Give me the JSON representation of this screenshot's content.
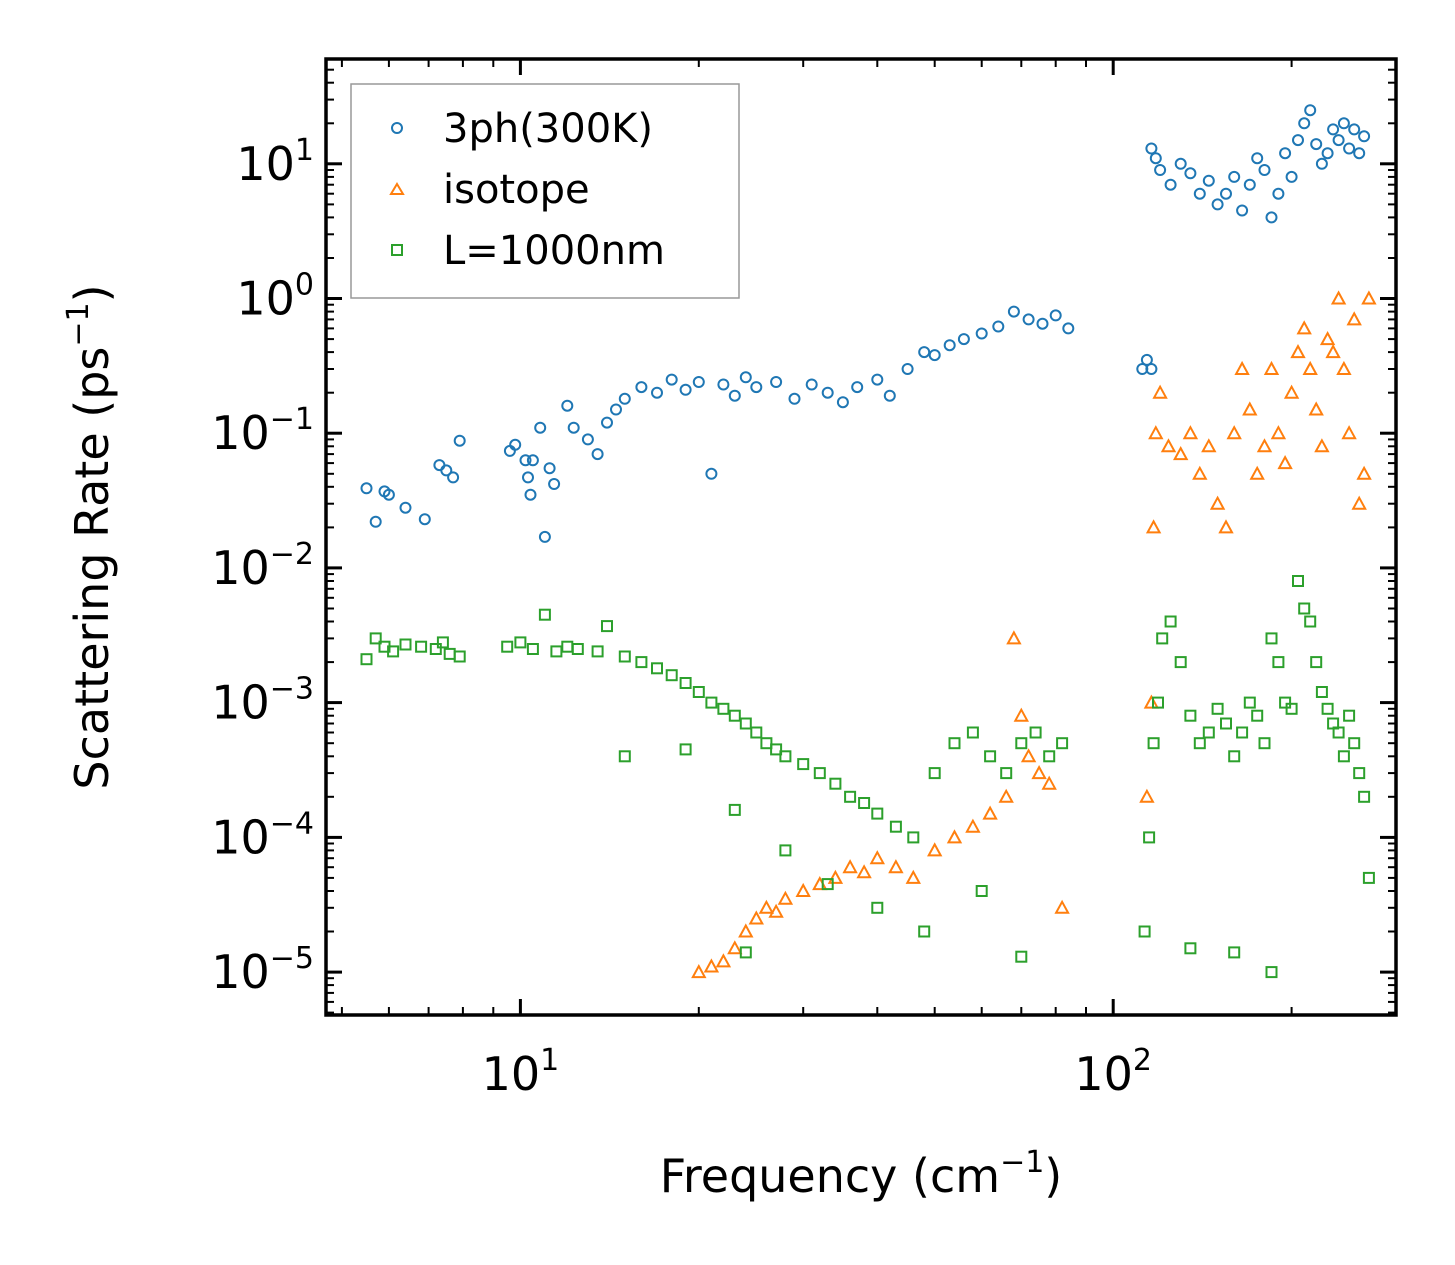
{
  "chart_data": {
    "type": "scatter",
    "title": "",
    "xlabel": "Frequency (cm",
    "xlabel_exp": "−1",
    "xlabel_end": ")",
    "ylabel": "Scattering Rate (ps",
    "ylabel_exp": "−1",
    "ylabel_end": ")",
    "xscale": "log",
    "yscale": "log",
    "xlim": [
      4.7,
      300
    ],
    "ylim": [
      4.8e-06,
      60
    ],
    "grid": false,
    "legend_position": "top-left",
    "x_ticks": [
      {
        "value": 10,
        "base": "10",
        "exp": "1"
      },
      {
        "value": 100,
        "base": "10",
        "exp": "2"
      }
    ],
    "y_ticks": [
      {
        "value": 10,
        "base": "10",
        "exp": "1"
      },
      {
        "value": 1,
        "base": "10",
        "exp": "0"
      },
      {
        "value": 0.1,
        "base": "10",
        "exp": "−1"
      },
      {
        "value": 0.01,
        "base": "10",
        "exp": "−2"
      },
      {
        "value": 0.001,
        "base": "10",
        "exp": "−3"
      },
      {
        "value": 0.0001,
        "base": "10",
        "exp": "−4"
      },
      {
        "value": 1e-05,
        "base": "10",
        "exp": "−5"
      }
    ],
    "series": [
      {
        "name": "3ph(300K)",
        "marker": "circle",
        "color": "#1f77b4",
        "points": [
          [
            5.5,
            0.039
          ],
          [
            5.7,
            0.022
          ],
          [
            5.9,
            0.037
          ],
          [
            6.0,
            0.035
          ],
          [
            6.4,
            0.028
          ],
          [
            6.9,
            0.023
          ],
          [
            7.3,
            0.058
          ],
          [
            7.5,
            0.053
          ],
          [
            7.7,
            0.047
          ],
          [
            7.9,
            0.088
          ],
          [
            9.6,
            0.074
          ],
          [
            9.8,
            0.082
          ],
          [
            10.2,
            0.063
          ],
          [
            10.3,
            0.047
          ],
          [
            10.4,
            0.035
          ],
          [
            10.5,
            0.063
          ],
          [
            10.8,
            0.11
          ],
          [
            11.0,
            0.017
          ],
          [
            11.2,
            0.055
          ],
          [
            11.4,
            0.042
          ],
          [
            12.0,
            0.16
          ],
          [
            12.3,
            0.11
          ],
          [
            13.0,
            0.09
          ],
          [
            13.5,
            0.07
          ],
          [
            14.0,
            0.12
          ],
          [
            14.5,
            0.15
          ],
          [
            15.0,
            0.18
          ],
          [
            16.0,
            0.22
          ],
          [
            17.0,
            0.2
          ],
          [
            18.0,
            0.25
          ],
          [
            19.0,
            0.21
          ],
          [
            20.0,
            0.24
          ],
          [
            21.0,
            0.05
          ],
          [
            22.0,
            0.23
          ],
          [
            23.0,
            0.19
          ],
          [
            24.0,
            0.26
          ],
          [
            25.0,
            0.22
          ],
          [
            27.0,
            0.24
          ],
          [
            29.0,
            0.18
          ],
          [
            31.0,
            0.23
          ],
          [
            33.0,
            0.2
          ],
          [
            35.0,
            0.17
          ],
          [
            37.0,
            0.22
          ],
          [
            40.0,
            0.25
          ],
          [
            42.0,
            0.19
          ],
          [
            45.0,
            0.3
          ],
          [
            48.0,
            0.4
          ],
          [
            50.0,
            0.38
          ],
          [
            53.0,
            0.45
          ],
          [
            56.0,
            0.5
          ],
          [
            60.0,
            0.55
          ],
          [
            64.0,
            0.62
          ],
          [
            68.0,
            0.8
          ],
          [
            72.0,
            0.7
          ],
          [
            76.0,
            0.65
          ],
          [
            80.0,
            0.75
          ],
          [
            84.0,
            0.6
          ],
          [
            112,
            0.3
          ],
          [
            114,
            0.35
          ],
          [
            116,
            0.3
          ],
          [
            116,
            13.0
          ],
          [
            118,
            11.0
          ],
          [
            120,
            9.0
          ],
          [
            125,
            7.0
          ],
          [
            130,
            10.0
          ],
          [
            135,
            8.5
          ],
          [
            140,
            6.0
          ],
          [
            145,
            7.5
          ],
          [
            150,
            5.0
          ],
          [
            155,
            6.0
          ],
          [
            160,
            8.0
          ],
          [
            165,
            4.5
          ],
          [
            170,
            7.0
          ],
          [
            175,
            11.0
          ],
          [
            180,
            9.0
          ],
          [
            185,
            4.0
          ],
          [
            190,
            6.0
          ],
          [
            195,
            12.0
          ],
          [
            200,
            8.0
          ],
          [
            205,
            15.0
          ],
          [
            210,
            20.0
          ],
          [
            215,
            25.0
          ],
          [
            220,
            14.0
          ],
          [
            225,
            10.0
          ],
          [
            230,
            12.0
          ],
          [
            235,
            18.0
          ],
          [
            240,
            15.0
          ],
          [
            245,
            20.0
          ],
          [
            250,
            13.0
          ],
          [
            255,
            18.0
          ],
          [
            260,
            12.0
          ],
          [
            265,
            16.0
          ]
        ]
      },
      {
        "name": "isotope",
        "marker": "triangle",
        "color": "#ff7f0e",
        "points": [
          [
            20.0,
            1e-05
          ],
          [
            21.0,
            1.1e-05
          ],
          [
            22.0,
            1.2e-05
          ],
          [
            23.0,
            1.5e-05
          ],
          [
            24.0,
            2e-05
          ],
          [
            25.0,
            2.5e-05
          ],
          [
            26.0,
            3e-05
          ],
          [
            27.0,
            2.8e-05
          ],
          [
            28.0,
            3.5e-05
          ],
          [
            30.0,
            4e-05
          ],
          [
            32.0,
            4.5e-05
          ],
          [
            34.0,
            5e-05
          ],
          [
            36.0,
            6e-05
          ],
          [
            38.0,
            5.5e-05
          ],
          [
            40.0,
            7e-05
          ],
          [
            43.0,
            6e-05
          ],
          [
            46.0,
            5e-05
          ],
          [
            50.0,
            8e-05
          ],
          [
            54.0,
            0.0001
          ],
          [
            58.0,
            0.00012
          ],
          [
            62.0,
            0.00015
          ],
          [
            66.0,
            0.0002
          ],
          [
            68.0,
            0.003
          ],
          [
            70.0,
            0.0008
          ],
          [
            72.0,
            0.0004
          ],
          [
            75.0,
            0.0003
          ],
          [
            78.0,
            0.00025
          ],
          [
            82.0,
            3e-05
          ],
          [
            114,
            0.0002
          ],
          [
            116,
            0.001
          ],
          [
            117,
            0.02
          ],
          [
            118,
            0.1
          ],
          [
            120,
            0.2
          ],
          [
            124,
            0.08
          ],
          [
            130,
            0.07
          ],
          [
            135,
            0.1
          ],
          [
            140,
            0.05
          ],
          [
            145,
            0.08
          ],
          [
            150,
            0.03
          ],
          [
            155,
            0.02
          ],
          [
            160,
            0.1
          ],
          [
            165,
            0.3
          ],
          [
            170,
            0.15
          ],
          [
            175,
            0.05
          ],
          [
            180,
            0.08
          ],
          [
            185,
            0.3
          ],
          [
            190,
            0.1
          ],
          [
            195,
            0.06
          ],
          [
            200,
            0.2
          ],
          [
            205,
            0.4
          ],
          [
            210,
            0.6
          ],
          [
            215,
            0.3
          ],
          [
            220,
            0.15
          ],
          [
            225,
            0.08
          ],
          [
            230,
            0.5
          ],
          [
            235,
            0.4
          ],
          [
            240,
            1.0
          ],
          [
            245,
            0.3
          ],
          [
            250,
            0.1
          ],
          [
            255,
            0.7
          ],
          [
            260,
            0.03
          ],
          [
            265,
            0.05
          ],
          [
            270,
            1.0
          ]
        ]
      },
      {
        "name": "L=1000nm",
        "marker": "square",
        "color": "#2ca02c",
        "points": [
          [
            5.5,
            0.0021
          ],
          [
            5.7,
            0.003
          ],
          [
            5.9,
            0.0026
          ],
          [
            6.1,
            0.0024
          ],
          [
            6.4,
            0.0027
          ],
          [
            6.8,
            0.0026
          ],
          [
            7.2,
            0.0025
          ],
          [
            7.4,
            0.0028
          ],
          [
            7.6,
            0.0023
          ],
          [
            7.9,
            0.0022
          ],
          [
            9.5,
            0.0026
          ],
          [
            10.0,
            0.0028
          ],
          [
            10.5,
            0.0025
          ],
          [
            11.0,
            0.0045
          ],
          [
            11.5,
            0.0024
          ],
          [
            12.0,
            0.0026
          ],
          [
            12.5,
            0.0025
          ],
          [
            13.5,
            0.0024
          ],
          [
            14.0,
            0.0037
          ],
          [
            15.0,
            0.0022
          ],
          [
            16.0,
            0.002
          ],
          [
            17.0,
            0.0018
          ],
          [
            18.0,
            0.0016
          ],
          [
            19.0,
            0.0014
          ],
          [
            20.0,
            0.0012
          ],
          [
            21.0,
            0.001
          ],
          [
            22.0,
            0.0009
          ],
          [
            23.0,
            0.0008
          ],
          [
            24.0,
            0.0007
          ],
          [
            25.0,
            0.0006
          ],
          [
            26.0,
            0.0005
          ],
          [
            27.0,
            0.00045
          ],
          [
            28.0,
            0.0004
          ],
          [
            30.0,
            0.00035
          ],
          [
            32.0,
            0.0003
          ],
          [
            34.0,
            0.00025
          ],
          [
            36.0,
            0.0002
          ],
          [
            38.0,
            0.00018
          ],
          [
            40.0,
            0.00015
          ],
          [
            43.0,
            0.00012
          ],
          [
            46.0,
            0.0001
          ],
          [
            50.0,
            0.0003
          ],
          [
            54.0,
            0.0005
          ],
          [
            58.0,
            0.0006
          ],
          [
            62.0,
            0.0004
          ],
          [
            66.0,
            0.0003
          ],
          [
            70.0,
            0.0005
          ],
          [
            74.0,
            0.0006
          ],
          [
            78.0,
            0.0004
          ],
          [
            82.0,
            0.0005
          ],
          [
            15.0,
            0.0004
          ],
          [
            19.0,
            0.00045
          ],
          [
            23.0,
            0.00016
          ],
          [
            24.0,
            1.4e-05
          ],
          [
            28.0,
            8e-05
          ],
          [
            33.0,
            4.5e-05
          ],
          [
            40.0,
            3e-05
          ],
          [
            48.0,
            2e-05
          ],
          [
            60.0,
            4e-05
          ],
          [
            70.0,
            1.3e-05
          ],
          [
            113,
            2e-05
          ],
          [
            115,
            0.0001
          ],
          [
            117,
            0.0005
          ],
          [
            119,
            0.001
          ],
          [
            121,
            0.003
          ],
          [
            125,
            0.004
          ],
          [
            130,
            0.002
          ],
          [
            135,
            0.0008
          ],
          [
            140,
            0.0005
          ],
          [
            145,
            0.0006
          ],
          [
            150,
            0.0009
          ],
          [
            155,
            0.0007
          ],
          [
            160,
            0.0004
          ],
          [
            165,
            0.0006
          ],
          [
            170,
            0.001
          ],
          [
            175,
            0.0008
          ],
          [
            180,
            0.0005
          ],
          [
            185,
            0.003
          ],
          [
            190,
            0.002
          ],
          [
            195,
            0.001
          ],
          [
            200,
            0.0009
          ],
          [
            205,
            0.008
          ],
          [
            210,
            0.005
          ],
          [
            215,
            0.004
          ],
          [
            220,
            0.002
          ],
          [
            225,
            0.0012
          ],
          [
            230,
            0.0009
          ],
          [
            235,
            0.0007
          ],
          [
            240,
            0.0006
          ],
          [
            245,
            0.0004
          ],
          [
            250,
            0.0008
          ],
          [
            255,
            0.0005
          ],
          [
            260,
            0.0003
          ],
          [
            265,
            0.0002
          ],
          [
            270,
            5e-05
          ],
          [
            135,
            1.5e-05
          ],
          [
            160,
            1.4e-05
          ],
          [
            185,
            1e-05
          ]
        ]
      }
    ]
  }
}
